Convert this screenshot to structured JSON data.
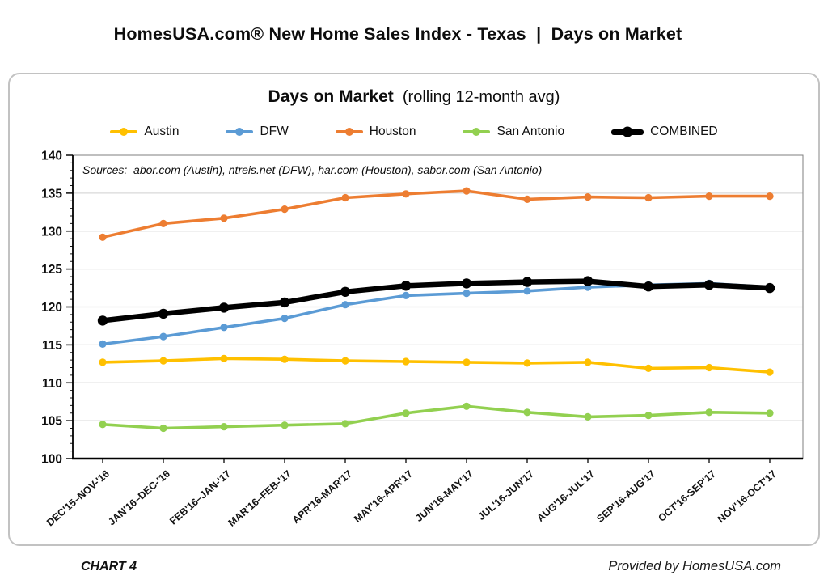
{
  "page": {
    "title": "HomesUSA.com® New Home Sales Index - Texas  |  Days on Market",
    "footer_left": "CHART 4",
    "footer_right": "Provided by HomesUSA.com"
  },
  "chart_card": {
    "title_main": "Days on Market",
    "title_sub": "  (rolling 12-month avg)",
    "sources_note": "Sources:  abor.com (Austin), ntreis.net (DFW), har.com (Houston), sabor.com (San Antonio)"
  },
  "chart_data": {
    "type": "line",
    "title": "Days on Market (rolling 12-month avg)",
    "xlabel": "",
    "ylabel": "",
    "ylim": [
      100,
      140
    ],
    "ytick_step": 5,
    "y_minor_tick_step": 1,
    "grid": "horizontal",
    "legend_position": "top",
    "categories": [
      "DEC'15–NOV-'16",
      "JAN'16–DEC-'16",
      "FEB'16–JAN-'17",
      "MAR'16–FEB-'17",
      "APR'16-MAR'17",
      "MAY'16-APR'17",
      "JUN'16-MAY'17",
      "JUL'16-JUN'17",
      "AUG'16-JUL'17",
      "SEP'16-AUG'17",
      "OCT'16-SEP'17",
      "NOV'16-OCT'17"
    ],
    "series": [
      {
        "name": "Austin",
        "color": "#FFC000",
        "values": [
          112.7,
          112.9,
          113.2,
          113.1,
          112.9,
          112.8,
          112.7,
          112.6,
          112.7,
          111.9,
          112.0,
          111.4
        ]
      },
      {
        "name": "DFW",
        "color": "#5B9BD5",
        "values": [
          115.1,
          116.1,
          117.3,
          118.5,
          120.3,
          121.5,
          121.8,
          122.1,
          122.6,
          122.9,
          123.1,
          122.6
        ]
      },
      {
        "name": "Houston",
        "color": "#ED7D31",
        "values": [
          129.2,
          131.0,
          131.7,
          132.9,
          134.4,
          134.9,
          135.3,
          134.2,
          134.5,
          134.4,
          134.6,
          134.6
        ]
      },
      {
        "name": "San Antonio",
        "color": "#92D050",
        "values": [
          104.5,
          104.0,
          104.2,
          104.4,
          104.6,
          106.0,
          106.9,
          106.1,
          105.5,
          105.7,
          106.1,
          106.0
        ]
      },
      {
        "name": "COMBINED",
        "color": "#000000",
        "emphasis": true,
        "values": [
          118.2,
          119.1,
          119.9,
          120.6,
          122.0,
          122.8,
          123.1,
          123.3,
          123.4,
          122.7,
          122.9,
          122.5
        ]
      }
    ]
  }
}
